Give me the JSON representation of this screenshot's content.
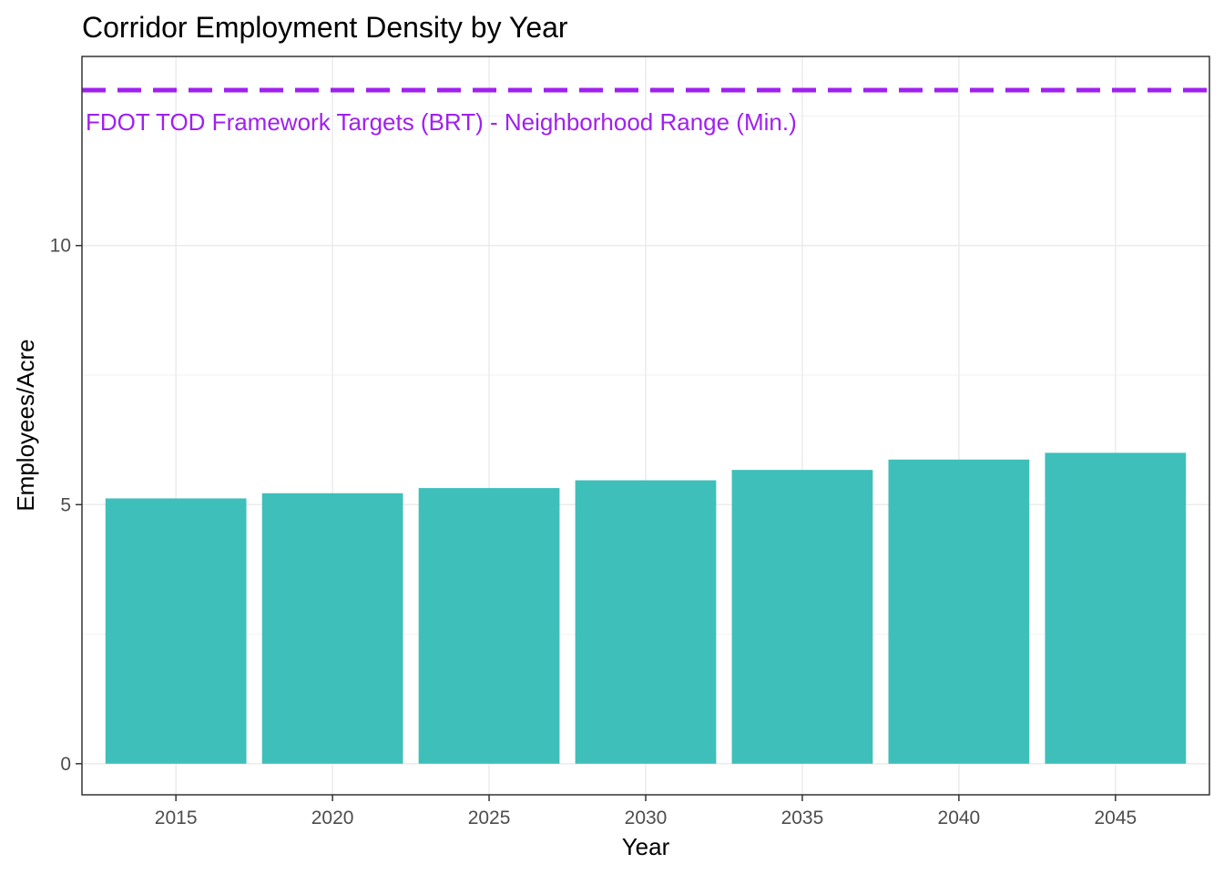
{
  "chart_data": {
    "type": "bar",
    "title": "Corridor Employment Density by Year",
    "xlabel": "Year",
    "ylabel": "Employees/Acre",
    "categories": [
      "2015",
      "2020",
      "2025",
      "2030",
      "2035",
      "2040",
      "2045"
    ],
    "values": [
      5.12,
      5.22,
      5.32,
      5.47,
      5.67,
      5.87,
      6.0
    ],
    "ylim": [
      -0.6,
      13.65
    ],
    "y_ticks": [
      0,
      5,
      10
    ],
    "y_tick_labels": [
      "0",
      "5",
      "10"
    ],
    "grid": true,
    "bar_color": "#3EBFBA",
    "reference_line": {
      "value": 13.0,
      "label": "FDOT TOD Framework Targets (BRT) - Neighborhood Range (Min.)",
      "color": "#A020F0",
      "style": "dashed"
    }
  }
}
